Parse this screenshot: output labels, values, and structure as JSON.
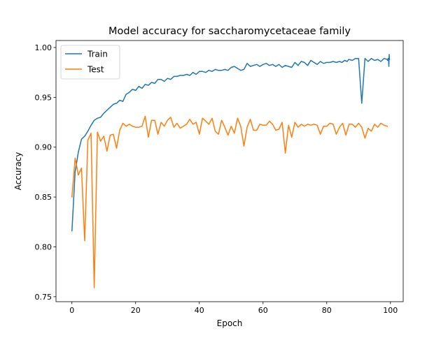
{
  "chart_data": {
    "type": "line",
    "title": "Model accuracy for saccharomycetaceae family",
    "xlabel": "Epoch",
    "ylabel": "Accuracy",
    "xlim": [
      -5,
      104
    ],
    "ylim": [
      0.745,
      1.007
    ],
    "xticks": [
      0,
      20,
      40,
      60,
      80,
      100
    ],
    "yticks": [
      0.75,
      0.8,
      0.85,
      0.9,
      0.95,
      1.0
    ],
    "ytick_labels": [
      "0.75",
      "0.80",
      "0.85",
      "0.90",
      "0.95",
      "1.00"
    ],
    "grid": false,
    "legend_position": "top-left",
    "series": [
      {
        "name": "Train",
        "color": "#1f77b4",
        "values": [
          0.816,
          0.875,
          0.895,
          0.908,
          0.911,
          0.916,
          0.922,
          0.927,
          0.929,
          0.93,
          0.934,
          0.937,
          0.94,
          0.943,
          0.944,
          0.947,
          0.946,
          0.953,
          0.955,
          0.958,
          0.957,
          0.961,
          0.959,
          0.963,
          0.962,
          0.965,
          0.964,
          0.968,
          0.968,
          0.966,
          0.969,
          0.968,
          0.971,
          0.971,
          0.972,
          0.972,
          0.973,
          0.972,
          0.975,
          0.973,
          0.976,
          0.976,
          0.975,
          0.977,
          0.976,
          0.978,
          0.977,
          0.977,
          0.978,
          0.977,
          0.98,
          0.981,
          0.979,
          0.977,
          0.978,
          0.984,
          0.981,
          0.982,
          0.983,
          0.981,
          0.983,
          0.984,
          0.982,
          0.983,
          0.981,
          0.983,
          0.98,
          0.982,
          0.981,
          0.98,
          0.985,
          0.982,
          0.986,
          0.985,
          0.982,
          0.987,
          0.985,
          0.983,
          0.986,
          0.984,
          0.985,
          0.985,
          0.986,
          0.985,
          0.986,
          0.985,
          0.987,
          0.986,
          0.988,
          0.988,
          0.987,
          0.989,
          0.989,
          0.944,
          0.989,
          0.986,
          0.989,
          0.987,
          0.988,
          0.986,
          0.989,
          0.988,
          0.987,
          0.988,
          0.989,
          0.988,
          0.981,
          0.993,
          0.988
        ],
        "x": [
          0,
          1,
          2,
          3,
          4,
          5,
          6,
          7,
          8,
          9,
          10,
          11,
          12,
          13,
          14,
          15,
          16,
          17,
          18,
          19,
          20,
          21,
          22,
          23,
          24,
          25,
          26,
          27,
          28,
          29,
          30,
          31,
          32,
          33,
          34,
          35,
          36,
          37,
          38,
          39,
          40,
          41,
          42,
          43,
          44,
          45,
          46,
          47,
          48,
          49,
          50,
          51,
          52,
          53,
          54,
          55,
          56,
          57,
          58,
          59,
          60,
          61,
          62,
          63,
          64,
          65,
          66,
          67,
          68,
          69,
          70,
          71,
          72,
          73,
          74,
          75,
          76,
          77,
          78,
          79,
          80,
          81,
          82,
          83,
          84,
          84.8,
          85.6,
          86.4,
          86.9,
          87,
          88,
          89,
          90,
          91,
          92,
          93,
          94,
          95,
          96,
          97,
          98,
          99,
          99.1,
          99.2,
          99.3,
          99.4,
          99.5,
          99.6,
          99.7
        ]
      },
      {
        "name": "Test",
        "color": "#ff7f0e",
        "x": [
          0,
          1,
          2,
          3,
          4,
          5,
          6,
          7,
          8,
          9,
          10,
          11,
          12,
          13,
          14,
          15,
          16,
          17,
          18,
          19,
          20,
          21,
          22,
          23,
          24,
          25,
          26,
          27,
          28,
          29,
          30,
          31,
          32,
          33,
          34,
          35,
          36,
          37,
          38,
          39,
          40,
          41,
          42,
          43,
          44,
          45,
          46,
          47,
          48,
          49,
          50,
          51,
          52,
          53,
          54,
          55,
          56,
          57,
          58,
          59,
          60,
          61,
          62,
          63,
          64,
          65,
          66,
          67,
          68,
          69,
          70,
          71,
          72,
          73,
          74,
          75,
          76,
          77,
          78,
          79,
          80,
          81,
          82,
          83,
          84,
          85,
          86,
          87,
          88,
          89,
          90,
          91,
          92,
          93,
          94,
          95,
          96,
          97,
          98,
          99
        ],
        "values": [
          0.85,
          0.889,
          0.872,
          0.879,
          0.806,
          0.907,
          0.914,
          0.759,
          0.915,
          0.906,
          0.911,
          0.896,
          0.912,
          0.913,
          0.899,
          0.917,
          0.924,
          0.921,
          0.923,
          0.921,
          0.92,
          0.92,
          0.921,
          0.931,
          0.91,
          0.927,
          0.927,
          0.913,
          0.925,
          0.921,
          0.927,
          0.93,
          0.92,
          0.924,
          0.919,
          0.921,
          0.923,
          0.928,
          0.923,
          0.925,
          0.913,
          0.929,
          0.926,
          0.923,
          0.929,
          0.916,
          0.913,
          0.927,
          0.92,
          0.912,
          0.921,
          0.914,
          0.929,
          0.921,
          0.901,
          0.92,
          0.928,
          0.917,
          0.917,
          0.923,
          0.922,
          0.922,
          0.926,
          0.923,
          0.917,
          0.918,
          0.925,
          0.894,
          0.922,
          0.91,
          0.925,
          0.92,
          0.923,
          0.921,
          0.923,
          0.922,
          0.923,
          0.922,
          0.913,
          0.921,
          0.921,
          0.924,
          0.923,
          0.913,
          0.92,
          0.924,
          0.912,
          0.923,
          0.923,
          0.92,
          0.924,
          0.92,
          0.909,
          0.919,
          0.916,
          0.923,
          0.92,
          0.924,
          0.922,
          0.921
        ]
      }
    ]
  }
}
